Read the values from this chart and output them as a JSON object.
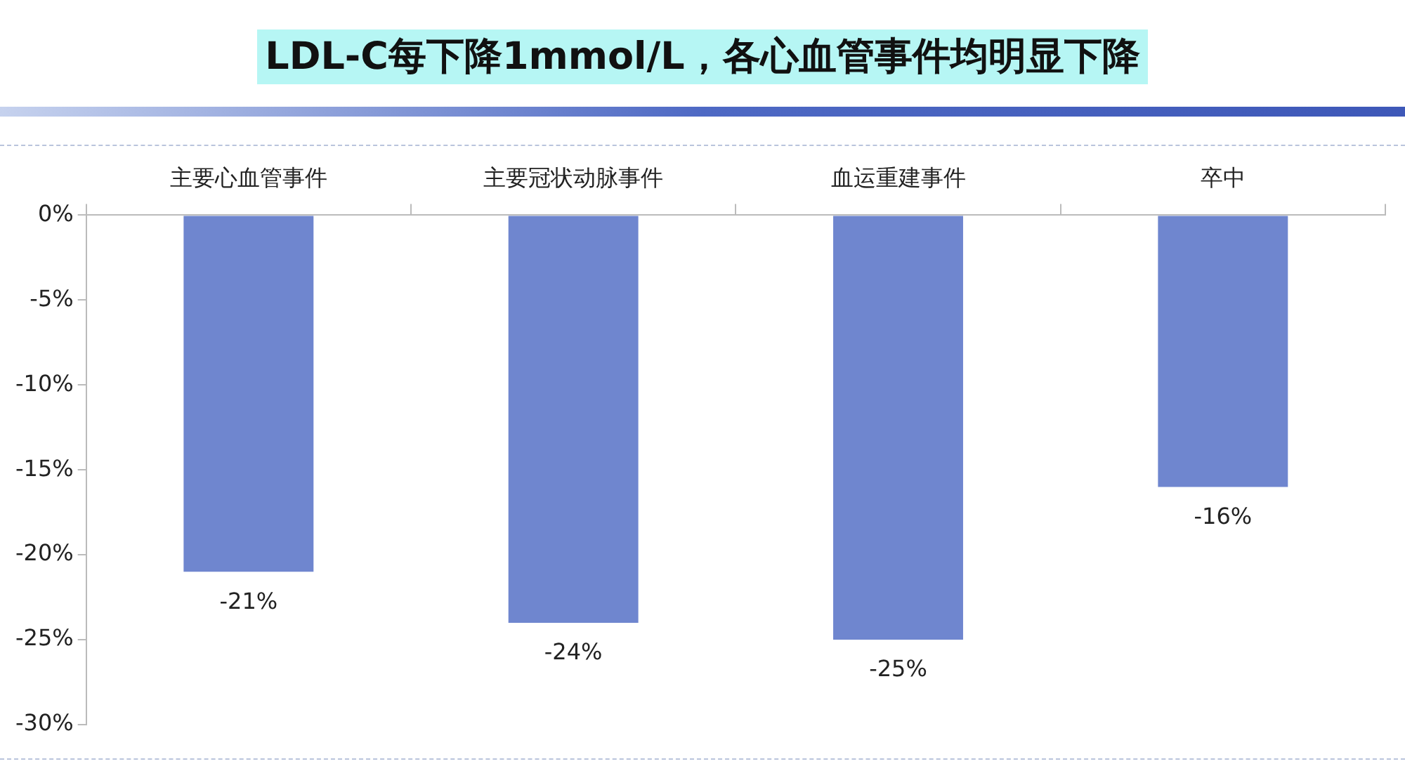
{
  "chart_data": {
    "type": "bar",
    "title": "LDL-C每下降1mmol/L，各心血管事件均明显下降",
    "categories": [
      "主要心血管事件",
      "主要冠状动脉事件",
      "血运重建事件",
      "卒中"
    ],
    "values": [
      -21,
      -24,
      -25,
      -16
    ],
    "color": "#6f86cf",
    "value_labels": [
      "-21%",
      "-24%",
      "-25%",
      "-16%"
    ],
    "ylim": [
      -30,
      0
    ],
    "yticks": [
      {
        "value": 0,
        "label": "0%"
      },
      {
        "value": -5,
        "label": "-5%"
      },
      {
        "value": -10,
        "label": "-10%"
      },
      {
        "value": -15,
        "label": "-15%"
      },
      {
        "value": -20,
        "label": "-20%"
      },
      {
        "value": -25,
        "label": "-25%"
      },
      {
        "value": -30,
        "label": "-30%"
      }
    ],
    "grid": false,
    "legend": false
  }
}
